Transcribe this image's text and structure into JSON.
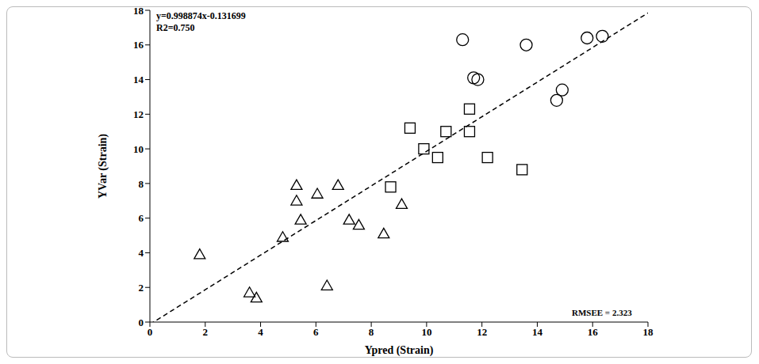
{
  "chart_data": {
    "type": "scatter",
    "xlabel": "Ypred (Strain)",
    "ylabel": "YVar (Strain)",
    "annotations": [
      "y=0.998874x-0.131699",
      "R2=0.750",
      "RMSEE = 2.323"
    ],
    "xlim": [
      0,
      18
    ],
    "ylim": [
      0,
      18
    ],
    "xticks": [
      0,
      2,
      4,
      6,
      8,
      10,
      12,
      14,
      16,
      18
    ],
    "yticks": [
      0,
      2,
      4,
      6,
      8,
      10,
      12,
      14,
      16,
      18
    ],
    "grid": false,
    "series": [
      {
        "marker": "triangle",
        "color": "#000000",
        "x": [
          1.8,
          3.6,
          3.85,
          4.8,
          5.3,
          5.3,
          5.45,
          6.05,
          6.4,
          6.8,
          7.2,
          7.55,
          8.45,
          9.1
        ],
        "values": [
          3.9,
          1.7,
          1.4,
          4.9,
          7.9,
          7.0,
          5.9,
          7.4,
          2.1,
          7.9,
          5.9,
          5.6,
          5.1,
          6.8
        ]
      },
      {
        "marker": "square",
        "color": "#000000",
        "x": [
          8.7,
          9.4,
          9.9,
          10.4,
          10.7,
          11.55,
          11.55,
          12.2,
          13.45
        ],
        "values": [
          7.8,
          11.2,
          10.0,
          9.5,
          11.0,
          12.3,
          11.0,
          9.5,
          8.8
        ]
      },
      {
        "marker": "circle",
        "color": "#000000",
        "x": [
          11.3,
          11.7,
          11.85,
          13.6,
          14.7,
          14.9,
          15.8,
          16.35
        ],
        "values": [
          16.3,
          14.1,
          14.0,
          16.0,
          12.8,
          13.4,
          16.4,
          16.5
        ]
      }
    ],
    "fit_line": {
      "slope": 0.998874,
      "intercept": -0.131699,
      "color": "#000000",
      "line_style": "dashed"
    }
  }
}
